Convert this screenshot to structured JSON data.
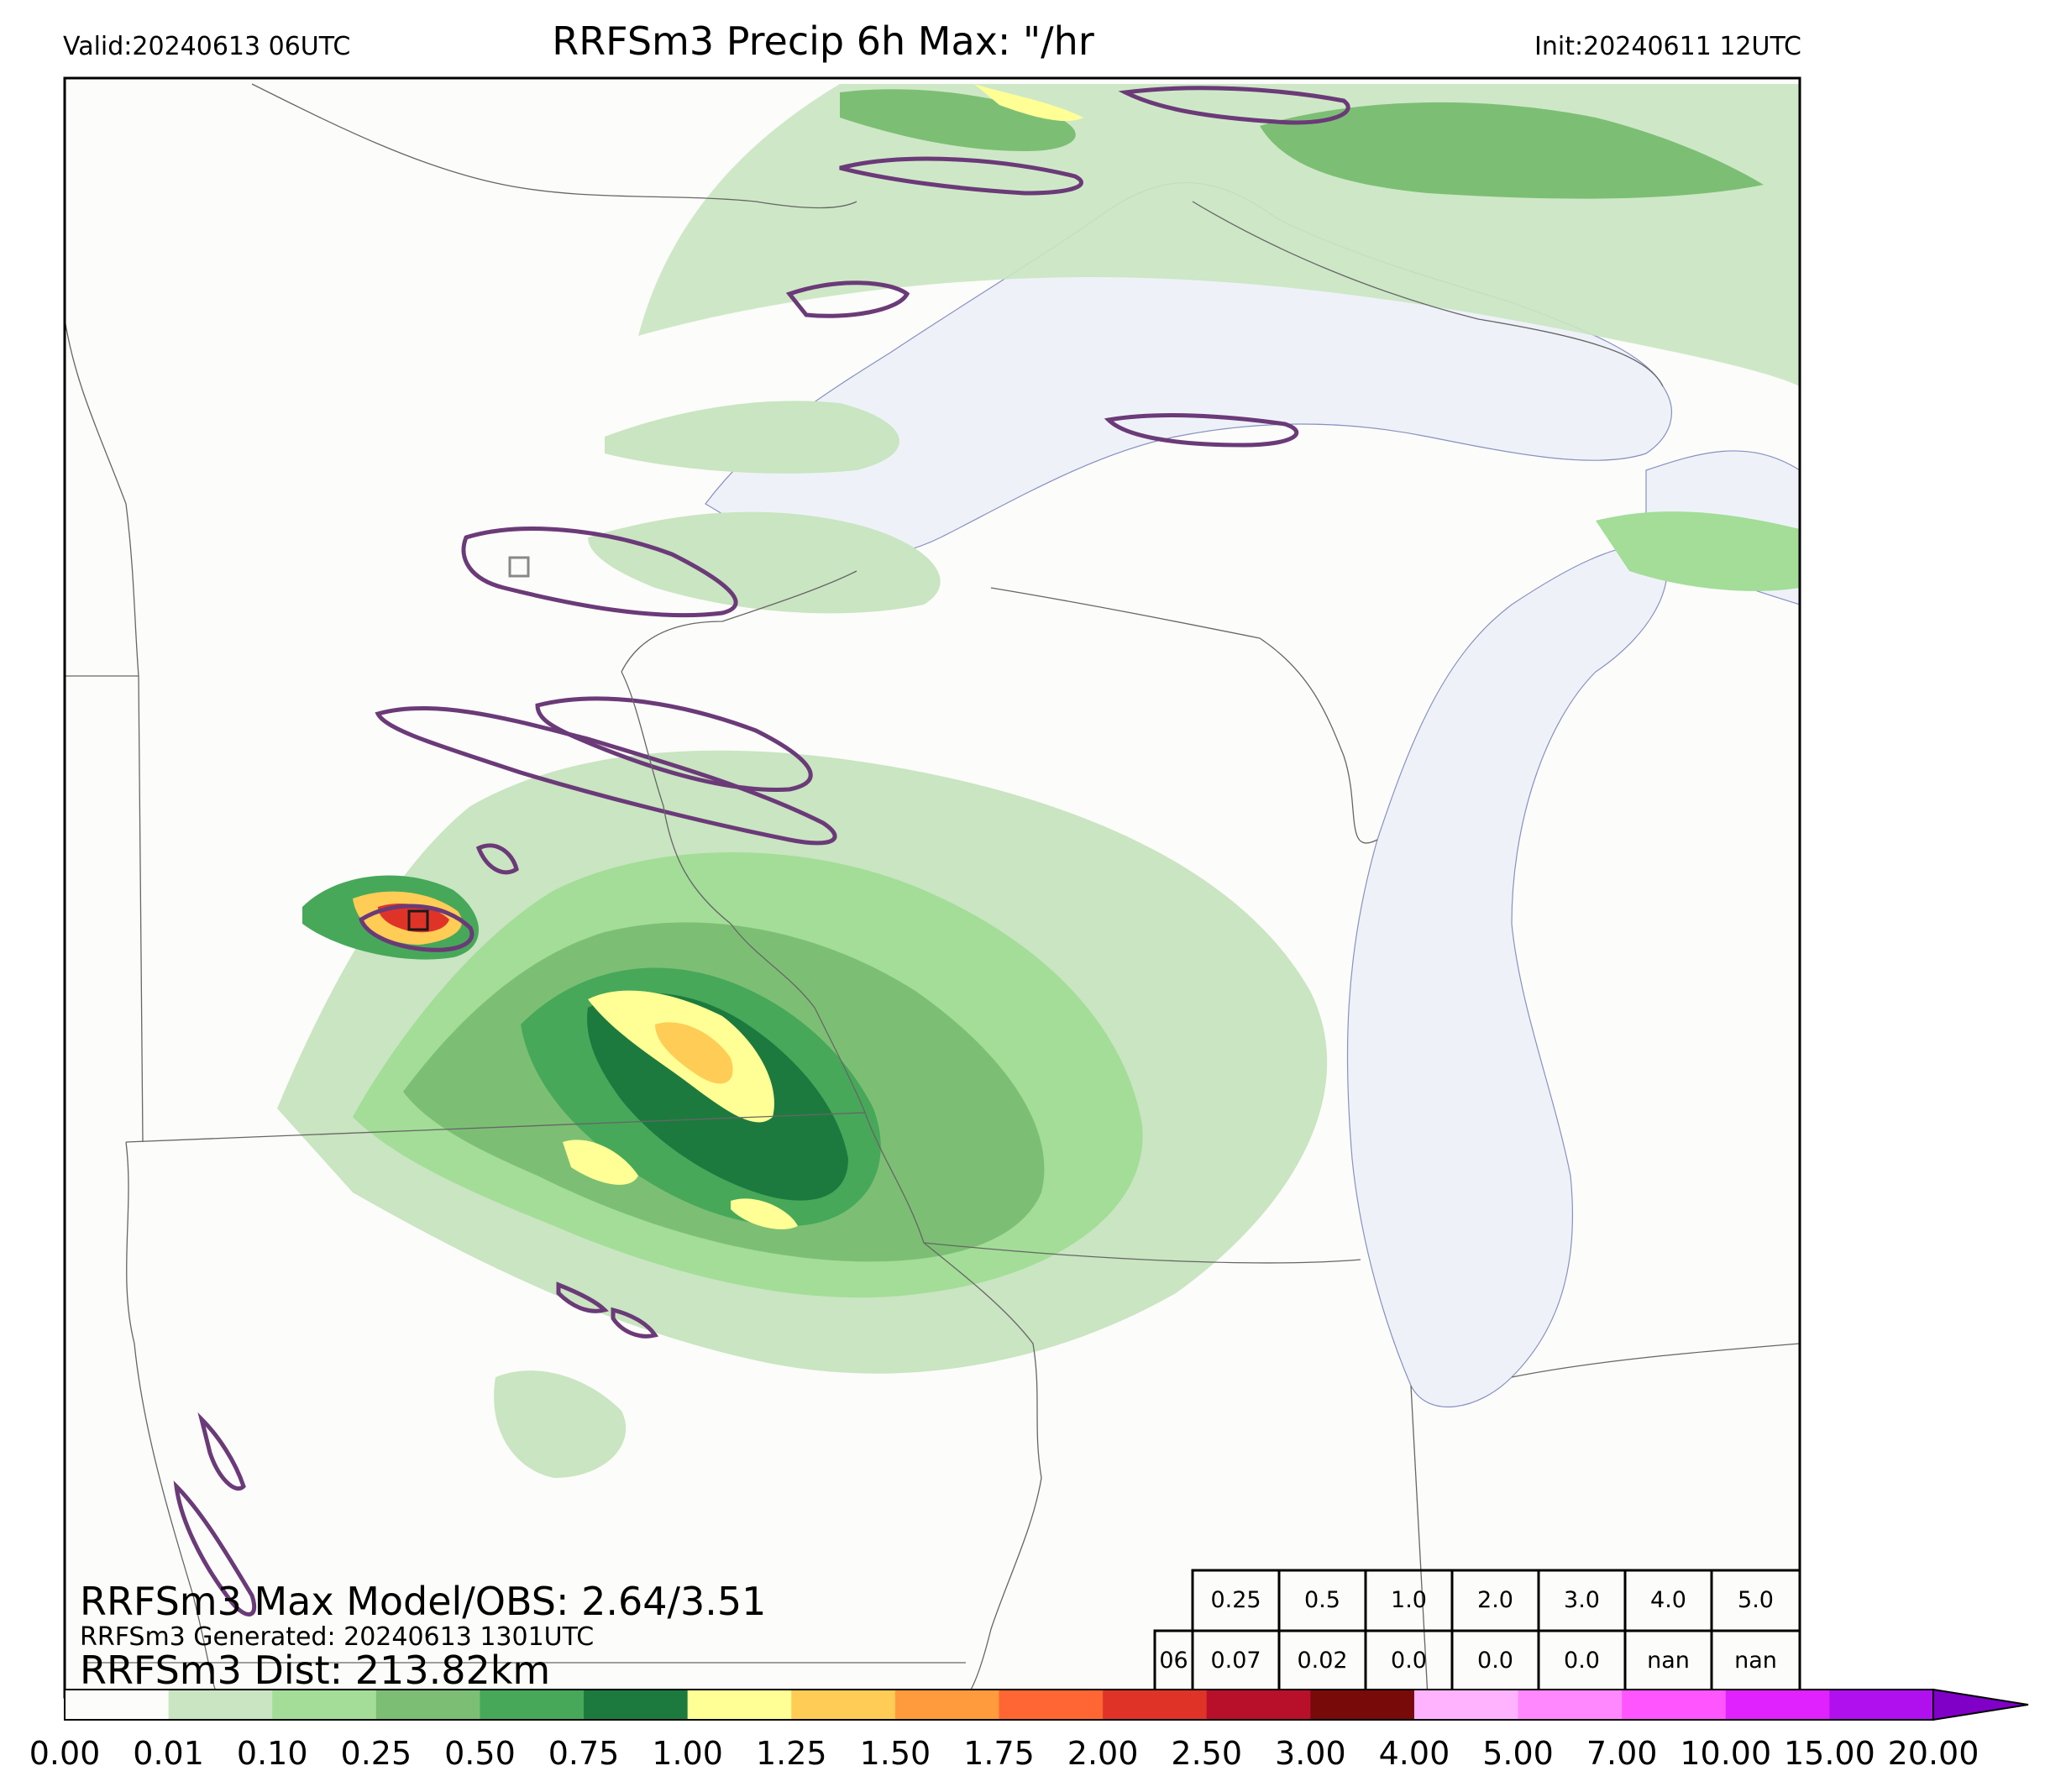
{
  "header": {
    "valid": "Valid:20240613 06UTC",
    "title": "RRFSm3 Precip 6h Max: \"/hr",
    "init": "Init:20240611 12UTC"
  },
  "stats": {
    "max_line": "RRFSm3 Max Model/OBS: 2.64/3.51",
    "generated_line": "RRFSm3 Generated: 20240613 1301UTC",
    "dist_line": "RRFSm3 Dist: 213.82km"
  },
  "threshold_table": {
    "thresholds": [
      "0.25",
      "0.5",
      "1.0",
      "2.0",
      "3.0",
      "4.0",
      "5.0"
    ],
    "row_label": "06",
    "values": [
      "0.07",
      "0.02",
      "0.0",
      "0.0",
      "0.0",
      "nan",
      "nan"
    ]
  },
  "colorbar": {
    "labels": [
      "0.00",
      "0.01",
      "0.10",
      "0.25",
      "0.50",
      "0.75",
      "1.00",
      "1.25",
      "1.50",
      "1.75",
      "2.00",
      "2.50",
      "3.00",
      "4.00",
      "5.00",
      "7.00",
      "10.00",
      "15.00",
      "20.00"
    ],
    "colors": [
      "#fcfcfa",
      "#c9e5c1",
      "#a3dd98",
      "#7cbf74",
      "#47a85a",
      "#1d7a3e",
      "#ffff96",
      "#ffcc55",
      "#ff9b3c",
      "#ff6633",
      "#e03328",
      "#b8102a",
      "#780a0a",
      "#ffb3ff",
      "#ff88ff",
      "#ff55ff",
      "#e022ff",
      "#b010ee",
      "#8000c8"
    ]
  },
  "map_colors": {
    "land": "#fcfcfa",
    "water": "#eef2f8",
    "observed_contour": "#6b3a78",
    "border": "#666666"
  }
}
